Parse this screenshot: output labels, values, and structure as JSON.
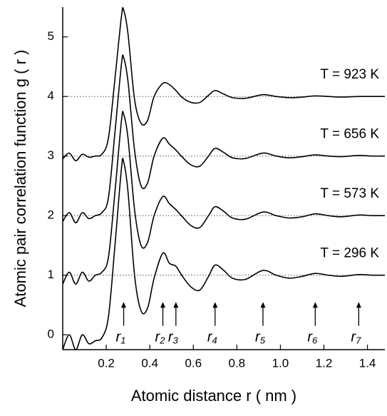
{
  "chart_data": {
    "type": "line",
    "x_label": "Atomic distance r ( nm )",
    "y_label": "Atomic pair correlation function g ( r )",
    "x": [
      0.0,
      0.03,
      0.06,
      0.09,
      0.12,
      0.15,
      0.18,
      0.21,
      0.24,
      0.27,
      0.28,
      0.3,
      0.33,
      0.36,
      0.39,
      0.42,
      0.46,
      0.49,
      0.52,
      0.55,
      0.59,
      0.63,
      0.67,
      0.7,
      0.74,
      0.78,
      0.84,
      0.92,
      0.98,
      1.04,
      1.1,
      1.16,
      1.22,
      1.28,
      1.36,
      1.42,
      1.48
    ],
    "series": [
      {
        "name": "T = 296 K",
        "color": "#000000",
        "values": [
          -0.25,
          0.0,
          -0.25,
          0.0,
          -0.15,
          -0.1,
          -0.05,
          0.3,
          1.5,
          2.8,
          2.9,
          2.4,
          1.0,
          0.4,
          0.45,
          0.95,
          1.37,
          1.2,
          1.15,
          0.98,
          0.8,
          0.75,
          0.98,
          1.17,
          1.08,
          0.95,
          0.93,
          1.08,
          1.0,
          0.95,
          0.98,
          1.03,
          1.0,
          0.98,
          1.01,
          1.0,
          1.0
        ]
      },
      {
        "name": "T = 573 K",
        "color": "#000000",
        "values": [
          0.85,
          1.05,
          0.85,
          1.05,
          0.9,
          1.0,
          1.05,
          1.3,
          2.4,
          3.6,
          3.7,
          3.3,
          2.1,
          1.5,
          1.55,
          2.0,
          2.32,
          2.2,
          2.1,
          1.98,
          1.83,
          1.8,
          2.0,
          2.15,
          2.07,
          1.96,
          1.94,
          2.06,
          2.0,
          1.96,
          1.98,
          2.03,
          2.0,
          1.98,
          2.01,
          2.0,
          2.0
        ]
      },
      {
        "name": "T = 656 K",
        "color": "#000000",
        "values": [
          1.9,
          2.05,
          1.88,
          2.05,
          1.95,
          2.0,
          2.05,
          2.3,
          3.4,
          4.55,
          4.65,
          4.25,
          3.1,
          2.5,
          2.55,
          3.0,
          3.3,
          3.2,
          3.1,
          2.98,
          2.85,
          2.83,
          3.0,
          3.13,
          3.06,
          2.97,
          2.96,
          3.05,
          3.0,
          2.97,
          2.99,
          3.02,
          3.0,
          2.99,
          3.01,
          3.0,
          3.0
        ]
      },
      {
        "name": "T = 923 K",
        "color": "#000000",
        "values": [
          2.95,
          3.05,
          2.92,
          3.03,
          2.98,
          3.0,
          3.03,
          3.3,
          4.3,
          5.35,
          5.45,
          5.05,
          3.95,
          3.55,
          3.6,
          4.0,
          4.22,
          4.2,
          4.1,
          3.98,
          3.9,
          3.9,
          4.02,
          4.1,
          4.04,
          3.98,
          3.97,
          4.03,
          4.0,
          3.98,
          3.99,
          4.01,
          4.0,
          3.99,
          4.0,
          4.0,
          4.0
        ]
      }
    ],
    "reference_lines": [
      1,
      2,
      3,
      4
    ],
    "annotations": [
      {
        "text": "r",
        "sub": "1",
        "x": 0.28
      },
      {
        "text": "r",
        "sub": "2",
        "x": 0.46
      },
      {
        "text": "r",
        "sub": "3",
        "x": 0.52
      },
      {
        "text": "r",
        "sub": "4",
        "x": 0.7
      },
      {
        "text": "r",
        "sub": "5",
        "x": 0.92
      },
      {
        "text": "r",
        "sub": "6",
        "x": 1.16
      },
      {
        "text": "r",
        "sub": "7",
        "x": 1.36
      }
    ],
    "xlim": [
      0.0,
      1.48
    ],
    "xticks": [
      0.2,
      0.4,
      0.6,
      0.8,
      {
        "value": 1.0,
        "label": "1.0"
      },
      1.2,
      1.4
    ],
    "ylim": [
      -0.25,
      5.5
    ],
    "yticks": [
      0,
      1,
      2,
      3,
      4,
      5
    ]
  }
}
